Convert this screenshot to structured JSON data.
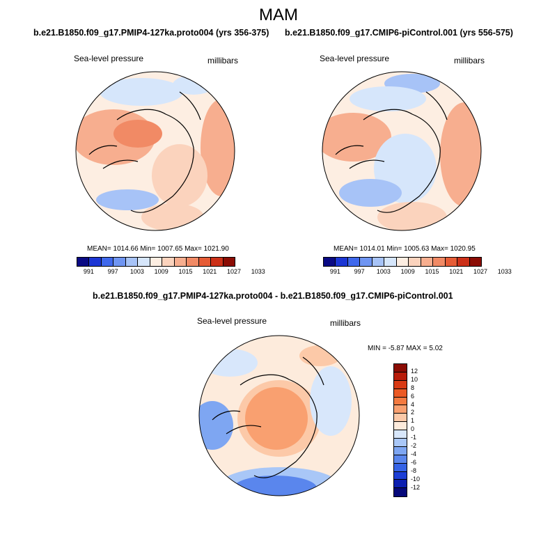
{
  "title": "MAM",
  "panels": [
    {
      "title": "b.e21.B1850.f09_g17.PMIP4-127ka.proto004 (yrs 356-375)",
      "variable": "Sea-level pressure",
      "units": "millibars",
      "stats": "MEAN= 1014.66  Min= 1007.65  Max= 1021.90"
    },
    {
      "title": "b.e21.B1850.f09_g17.CMIP6-piControl.001 (yrs 556-575)",
      "variable": "Sea-level pressure",
      "units": "millibars",
      "stats": "MEAN= 1014.01  Min= 1005.63  Max= 1020.95"
    },
    {
      "title": "b.e21.B1850.f09_g17.PMIP4-127ka.proto004 - b.e21.B1850.f09_g17.CMIP6-piControl.001",
      "variable": "Sea-level pressure",
      "units": "millibars",
      "stats": "MIN =  -5.87 MAX =   5.02"
    }
  ],
  "colorbar_abs": {
    "ticks": [
      "991",
      "997",
      "1003",
      "1009",
      "1015",
      "1021",
      "1027",
      "1033"
    ],
    "colors": [
      "#0a0a84",
      "#1c36d4",
      "#3f68ec",
      "#6f95f2",
      "#a7c3f7",
      "#d6e6fb",
      "#fdeee2",
      "#fbd3bd",
      "#f7ae8f",
      "#f18a65",
      "#e65c36",
      "#cc3018",
      "#8b0c04"
    ]
  },
  "colorbar_diff": {
    "ticks": [
      "12",
      "10",
      "8",
      "6",
      "4",
      "2",
      "1",
      "0",
      "-1",
      "-2",
      "-4",
      "-6",
      "-8",
      "-10",
      "-12"
    ],
    "colors": [
      "#8b0c04",
      "#b81c0a",
      "#d93a14",
      "#ec5a24",
      "#f47a40",
      "#f9a070",
      "#fcc9a8",
      "#fdebdc",
      "#d8e7fb",
      "#a9c7f7",
      "#7ea6f2",
      "#5a86ed",
      "#3563e6",
      "#1c3ed6",
      "#0c1fb0",
      "#06097a"
    ]
  }
}
